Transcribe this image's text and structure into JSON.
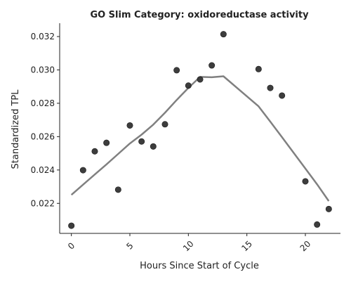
{
  "chart_data": {
    "type": "scatter",
    "title": "GO Slim Category: oxidoreductase activity",
    "xlabel": "Hours Since Start of Cycle",
    "ylabel": "Standardized TPL",
    "xlim": [
      -1,
      23
    ],
    "ylim": [
      0.0202,
      0.0328
    ],
    "xticks": [
      0,
      5,
      10,
      15,
      20
    ],
    "yticks": [
      0.022,
      0.024,
      0.026,
      0.028,
      0.03,
      0.032
    ],
    "ytick_labels": [
      "0.022",
      "0.024",
      "0.026",
      "0.028",
      "0.030",
      "0.032"
    ],
    "grid": false,
    "points": {
      "x": [
        0,
        1,
        2,
        3,
        4,
        5,
        6,
        7,
        8,
        9,
        10,
        11,
        12,
        13,
        16,
        17,
        18,
        20,
        21,
        22
      ],
      "y": [
        0.02066,
        0.02399,
        0.02512,
        0.02563,
        0.02282,
        0.02667,
        0.02571,
        0.02541,
        0.02674,
        0.02998,
        0.02906,
        0.02943,
        0.03027,
        0.03214,
        0.03005,
        0.02892,
        0.02846,
        0.02332,
        0.02073,
        0.02166
      ],
      "color": "#333333"
    },
    "trend": {
      "x": [
        0,
        1,
        2,
        3,
        4,
        5,
        6,
        7,
        8,
        9,
        10,
        11,
        12,
        13,
        16,
        17,
        18,
        20,
        21,
        22
      ],
      "y": [
        0.02251,
        0.02312,
        0.02373,
        0.02434,
        0.02496,
        0.02559,
        0.02612,
        0.02672,
        0.02743,
        0.0282,
        0.02892,
        0.02958,
        0.02956,
        0.02962,
        0.02782,
        0.0269,
        0.02597,
        0.02409,
        0.02314,
        0.02214
      ],
      "color": "#808080"
    }
  }
}
